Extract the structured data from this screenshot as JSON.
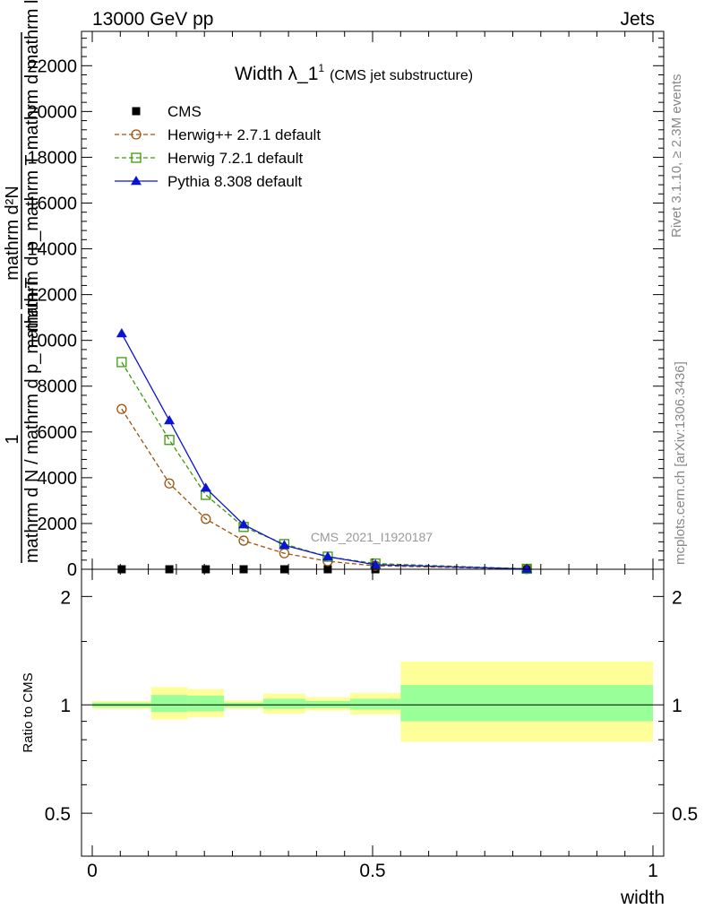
{
  "header": {
    "energy_label": "13000 GeV pp",
    "process_label": "Jets"
  },
  "side_labels": {
    "rivet": "Rivet 3.1.10, ≥ 2.3M events",
    "mcplots": "mcplots.cern.ch [arXiv:1306.3436]"
  },
  "watermark": "CMS_2021_I1920187",
  "colors": {
    "cms": "#000000",
    "herwigpp": "#a0520a",
    "herwig7": "#3a9a0a",
    "pythia": "#0a14d2",
    "band_yellow": "#ffff99",
    "band_green": "#99ff99"
  },
  "chart_data": [
    {
      "type": "line",
      "title": "Width λ_1",
      "title_sup": "1",
      "subtitle": "(CMS jet substructure)",
      "ylabel_numerator": "mathrm d²N",
      "ylabel_denominator": "mathrm d p_mathrm T mathrm d mathrm lambda",
      "ylabel_prefix_num": "1",
      "ylabel_prefix_den": "mathrm d N / mathrm d p_mathrm T",
      "xlim": [
        0,
        1
      ],
      "ylim": [
        0,
        23500
      ],
      "yticks": [
        0,
        2000,
        4000,
        6000,
        8000,
        10000,
        12000,
        14000,
        16000,
        18000,
        20000,
        22000
      ],
      "ytick_labels": [
        "0",
        "2000",
        "4000",
        "6000",
        "8000",
        "10000",
        "12000",
        "14000",
        "16000",
        "18000",
        "20000",
        "22000"
      ],
      "legend_position": "top-left",
      "x_edges": [
        0,
        0.105,
        0.17,
        0.235,
        0.305,
        0.38,
        0.46,
        0.55,
        1.0
      ],
      "series": [
        {
          "name": "CMS",
          "marker": "square-filled",
          "line": "none",
          "x": [
            0.0525,
            0.1375,
            0.2025,
            0.27,
            0.3425,
            0.42,
            0.505,
            0.775
          ],
          "values": [
            0,
            0,
            0,
            0,
            0,
            0,
            0,
            0
          ]
        },
        {
          "name": "Herwig++ 2.7.1 default",
          "marker": "circle-open",
          "line": "dashed",
          "x": [
            0.0525,
            0.1375,
            0.2025,
            0.27,
            0.3425,
            0.42,
            0.505,
            0.775
          ],
          "values": [
            7000,
            3750,
            2200,
            1250,
            700,
            350,
            150,
            10
          ]
        },
        {
          "name": "Herwig 7.2.1 default",
          "marker": "square-open",
          "line": "dashed",
          "x": [
            0.0525,
            0.1375,
            0.2025,
            0.27,
            0.3425,
            0.42,
            0.505,
            0.775
          ],
          "values": [
            9050,
            5650,
            3250,
            1850,
            1100,
            550,
            250,
            20
          ]
        },
        {
          "name": "Pythia 8.308 default",
          "marker": "triangle-filled",
          "line": "solid",
          "x": [
            0.0525,
            0.1375,
            0.2025,
            0.27,
            0.3425,
            0.42,
            0.505,
            0.775
          ],
          "values": [
            10300,
            6500,
            3550,
            1950,
            1050,
            550,
            200,
            15
          ]
        }
      ]
    },
    {
      "type": "area",
      "ylabel": "Ratio to CMS",
      "xlabel": "width",
      "xlim": [
        0,
        1
      ],
      "ylim": [
        0.38,
        2.38
      ],
      "scale": "log",
      "yticks": [
        0.5,
        1,
        2
      ],
      "ytick_labels": [
        "0.5",
        "1",
        "2"
      ],
      "xticks": [
        0,
        0.5,
        1
      ],
      "xtick_labels": [
        "0",
        "0.5",
        "1"
      ],
      "bands": [
        {
          "x0": 0.0,
          "x1": 0.105,
          "yellow": [
            0.975,
            1.025
          ],
          "green": [
            0.985,
            1.015
          ]
        },
        {
          "x0": 0.105,
          "x1": 0.17,
          "yellow": [
            0.91,
            1.12
          ],
          "green": [
            0.955,
            1.065
          ]
        },
        {
          "x0": 0.17,
          "x1": 0.235,
          "yellow": [
            0.925,
            1.105
          ],
          "green": [
            0.96,
            1.06
          ]
        },
        {
          "x0": 0.235,
          "x1": 0.305,
          "yellow": [
            0.975,
            1.03
          ],
          "green": [
            0.985,
            1.015
          ]
        },
        {
          "x0": 0.305,
          "x1": 0.38,
          "yellow": [
            0.945,
            1.075
          ],
          "green": [
            0.975,
            1.04
          ]
        },
        {
          "x0": 0.38,
          "x1": 0.46,
          "yellow": [
            0.965,
            1.05
          ],
          "green": [
            0.98,
            1.025
          ]
        },
        {
          "x0": 0.46,
          "x1": 0.55,
          "yellow": [
            0.94,
            1.08
          ],
          "green": [
            0.97,
            1.04
          ]
        },
        {
          "x0": 0.55,
          "x1": 1.0,
          "yellow": [
            0.79,
            1.32
          ],
          "green": [
            0.9,
            1.135
          ]
        }
      ]
    }
  ]
}
